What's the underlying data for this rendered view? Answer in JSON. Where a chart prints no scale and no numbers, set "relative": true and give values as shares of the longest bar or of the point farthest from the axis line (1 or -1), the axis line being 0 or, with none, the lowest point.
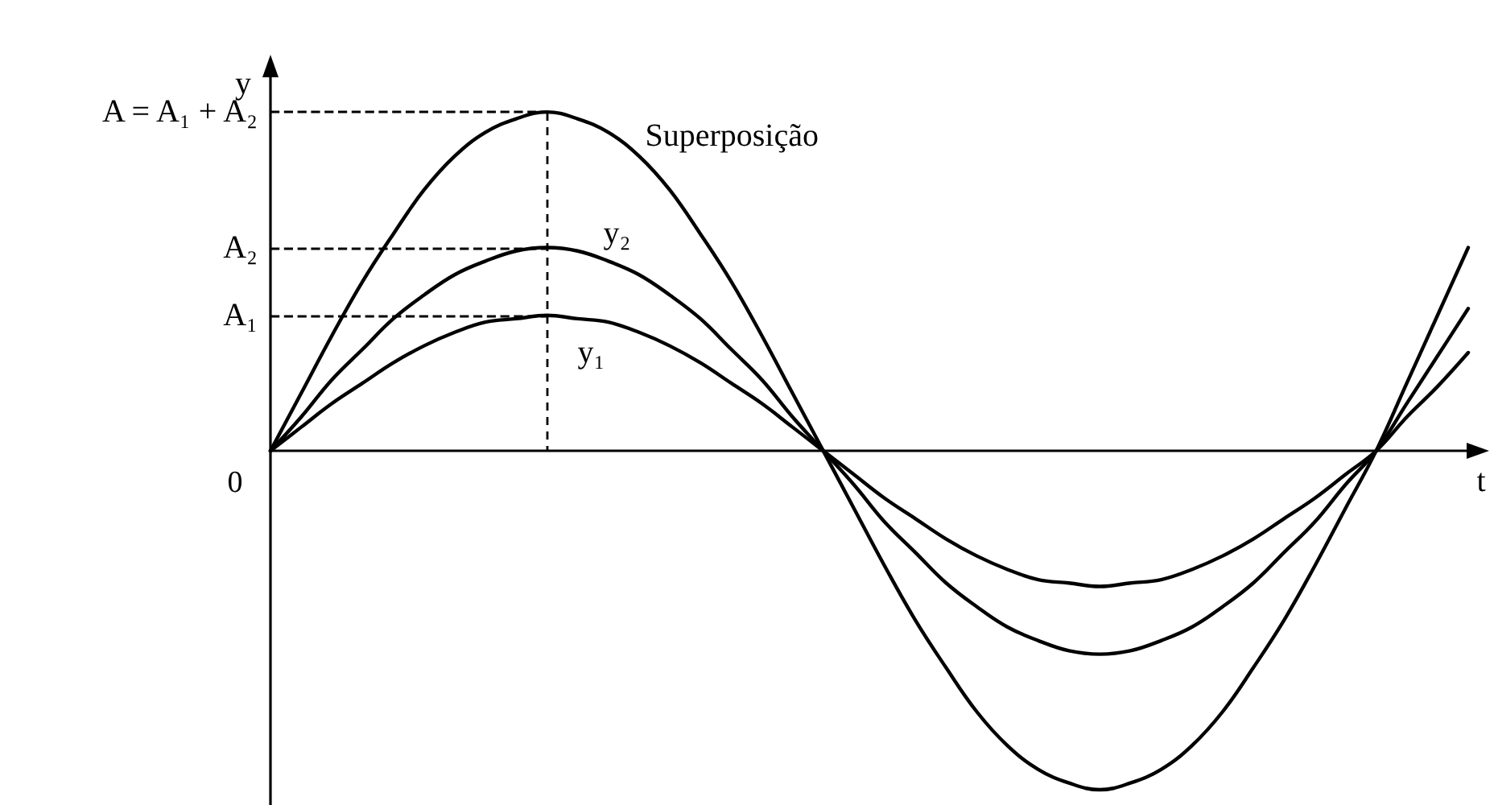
{
  "chart_data": {
    "type": "line",
    "relative": true,
    "xlabel": "t",
    "ylabel": "y",
    "categories": [
      null,
      null,
      null,
      null,
      null,
      null,
      null,
      null,
      null,
      null,
      null,
      null,
      null,
      null,
      null,
      null,
      null,
      null,
      null,
      null,
      null,
      null,
      null,
      null,
      null,
      null,
      null,
      null,
      null,
      null,
      null,
      null,
      null,
      null,
      null,
      null,
      null,
      null,
      null,
      null
    ],
    "series": [
      {
        "name": "Superposição",
        "color": "#000000",
        "values": [
          0,
          0.17,
          0.34,
          0.5,
          0.64,
          0.77,
          0.87,
          0.94,
          0.98,
          1,
          0.98,
          0.94,
          0.87,
          0.77,
          0.64,
          0.5,
          0.34,
          0.17,
          0,
          -0.17,
          -0.34,
          -0.5,
          -0.64,
          -0.77,
          -0.87,
          -0.94,
          -0.98,
          -1,
          -0.98,
          -0.94,
          -0.87,
          -0.77,
          -0.64,
          -0.5,
          -0.34,
          -0.17,
          0,
          0.2,
          0.4,
          0.6
        ]
      },
      {
        "name": "y₂",
        "color": "#000000",
        "values": [
          0,
          0.1,
          0.21,
          0.3,
          0.39,
          0.46,
          0.52,
          0.56,
          0.59,
          0.6,
          0.59,
          0.56,
          0.52,
          0.46,
          0.39,
          0.3,
          0.21,
          0.1,
          0,
          -0.1,
          -0.21,
          -0.3,
          -0.39,
          -0.46,
          -0.52,
          -0.56,
          -0.59,
          -0.6,
          -0.59,
          -0.56,
          -0.52,
          -0.46,
          -0.39,
          -0.3,
          -0.21,
          -0.1,
          0,
          0.14,
          0.28,
          0.42
        ]
      },
      {
        "name": "y₁",
        "color": "#000000",
        "values": [
          0,
          0.07,
          0.14,
          0.2,
          0.26,
          0.31,
          0.35,
          0.38,
          0.39,
          0.4,
          0.39,
          0.38,
          0.35,
          0.31,
          0.26,
          0.2,
          0.14,
          0.07,
          0,
          -0.07,
          -0.14,
          -0.2,
          -0.26,
          -0.31,
          -0.35,
          -0.38,
          -0.39,
          -0.4,
          -0.39,
          -0.38,
          -0.35,
          -0.31,
          -0.26,
          -0.2,
          -0.14,
          -0.07,
          0,
          0.1,
          0.19,
          0.29
        ]
      }
    ],
    "ref_lines": [
      {
        "axis": "y",
        "value": 0.4,
        "label": "A₁",
        "color": "#000000",
        "line_style": "dashed"
      },
      {
        "axis": "y",
        "value": 0.6,
        "label": "A₂",
        "color": "#000000",
        "line_style": "dashed"
      },
      {
        "axis": "y",
        "value": 1,
        "label": "A = A₁ + A₂",
        "color": "#000000",
        "line_style": "dashed"
      }
    ],
    "annotations": [
      "0"
    ],
    "grid": false,
    "legend": false
  }
}
